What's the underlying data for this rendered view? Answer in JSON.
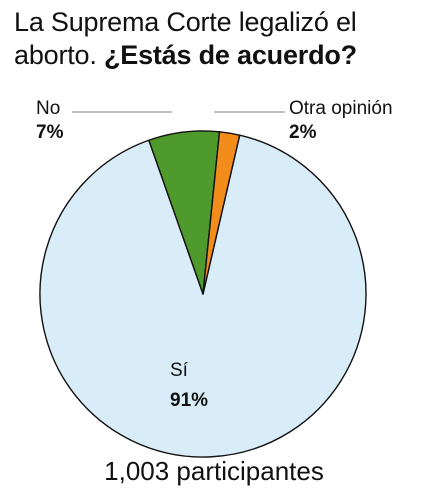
{
  "chart_data": {
    "type": "pie",
    "title_line1": "La Suprema Corte legalizó el",
    "title_line2_plain": "aborto. ",
    "title_line2_bold": "¿Estás de acuerdo?",
    "slices": [
      {
        "label": "Sí",
        "value": 91,
        "value_text": "91%",
        "color": "#d9edf9"
      },
      {
        "label": "No",
        "value": 7,
        "value_text": "7%",
        "color": "#4f9a2d"
      },
      {
        "label": "Otra opinión",
        "value": 2,
        "value_text": "2%",
        "color": "#f28c1b"
      }
    ],
    "footer": "1,003 participantes"
  }
}
